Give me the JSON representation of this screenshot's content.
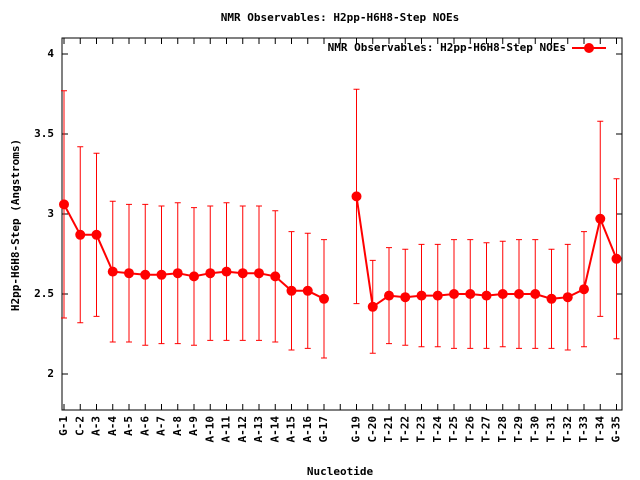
{
  "chart_data": {
    "type": "line",
    "title": "NMR Observables: H2pp-H6H8-Step NOEs",
    "x_label": "Nucleotide",
    "y_label": "H2pp-H6H8-Step (Angstroms)",
    "categories": [
      "G-1",
      "C-2",
      "A-3",
      "A-4",
      "A-5",
      "A-6",
      "A-7",
      "A-8",
      "A-9",
      "A-10",
      "A-11",
      "A-12",
      "A-13",
      "A-14",
      "A-15",
      "A-16",
      "G-17",
      null,
      "G-19",
      "C-20",
      "T-21",
      "T-22",
      "T-23",
      "T-24",
      "T-25",
      "T-26",
      "T-27",
      "T-28",
      "T-29",
      "T-30",
      "T-31",
      "T-32",
      "T-33",
      "T-34",
      "G-35"
    ],
    "series": [
      {
        "name": "NMR Observables: H2pp-H6H8-Step NOEs",
        "color": "#ff0000",
        "values": [
          3.06,
          2.87,
          2.87,
          2.64,
          2.63,
          2.62,
          2.62,
          2.63,
          2.61,
          2.63,
          2.64,
          2.63,
          2.63,
          2.61,
          2.52,
          2.52,
          2.47,
          null,
          3.11,
          2.42,
          2.49,
          2.48,
          2.49,
          2.49,
          2.5,
          2.5,
          2.49,
          2.5,
          2.5,
          2.5,
          2.47,
          2.48,
          2.53,
          2.97,
          2.72
        ],
        "errors": [
          0.71,
          0.55,
          0.51,
          0.44,
          0.43,
          0.44,
          0.43,
          0.44,
          0.43,
          0.42,
          0.43,
          0.42,
          0.42,
          0.41,
          0.37,
          0.36,
          0.37,
          null,
          0.67,
          0.29,
          0.3,
          0.3,
          0.32,
          0.32,
          0.34,
          0.34,
          0.33,
          0.33,
          0.34,
          0.34,
          0.31,
          0.33,
          0.36,
          0.61,
          0.5
        ]
      }
    ],
    "ylim": [
      1.775,
      4.1
    ],
    "yticks": [
      2,
      2.5,
      3,
      3.5,
      4
    ],
    "legend": "top-right"
  }
}
